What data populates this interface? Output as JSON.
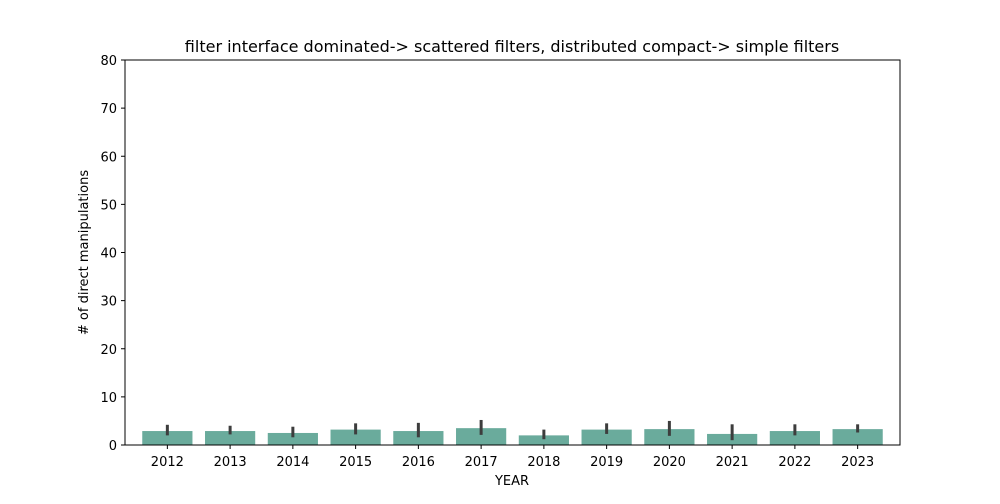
{
  "chart_data": {
    "type": "bar",
    "title": "filter interface dominated-> scattered filters, distributed compact-> simple filters",
    "xlabel": "YEAR",
    "ylabel": "# of direct manipulations",
    "categories": [
      "2012",
      "2013",
      "2014",
      "2015",
      "2016",
      "2017",
      "2018",
      "2019",
      "2020",
      "2021",
      "2022",
      "2023"
    ],
    "values": [
      2.9,
      2.9,
      2.5,
      3.2,
      2.9,
      3.5,
      2.0,
      3.2,
      3.3,
      2.3,
      2.9,
      3.3
    ],
    "error_low": [
      2.0,
      2.2,
      1.6,
      2.2,
      1.6,
      2.1,
      1.2,
      2.3,
      1.9,
      1.0,
      2.0,
      2.6
    ],
    "error_high": [
      4.2,
      4.0,
      3.8,
      4.5,
      4.6,
      5.2,
      3.2,
      4.5,
      5.0,
      4.3,
      4.3,
      4.3
    ],
    "ylim": [
      0,
      80
    ],
    "yticks": [
      0,
      10,
      20,
      30,
      40,
      50,
      60,
      70,
      80
    ],
    "grid": false,
    "colors": {
      "bar": "#6aab9c",
      "errorbar": "#3d3d3d",
      "axis": "#000000"
    }
  }
}
